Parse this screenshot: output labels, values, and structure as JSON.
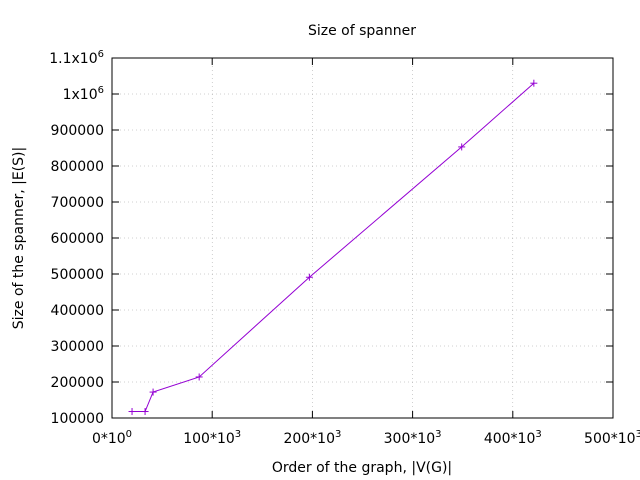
{
  "chart_data": {
    "type": "line",
    "title": "Size of spanner",
    "xlabel": "Order of the graph, |V(G)|",
    "ylabel": "Size of the spanner, |E(S)|",
    "xlim": [
      0,
      500000
    ],
    "ylim": [
      100000,
      1100000
    ],
    "grid": true,
    "x_ticks": [
      {
        "value": 0,
        "base": "0*10",
        "exp": "0"
      },
      {
        "value": 100000,
        "base": "100*10",
        "exp": "3"
      },
      {
        "value": 200000,
        "base": "200*10",
        "exp": "3"
      },
      {
        "value": 300000,
        "base": "300*10",
        "exp": "3"
      },
      {
        "value": 400000,
        "base": "400*10",
        "exp": "3"
      },
      {
        "value": 500000,
        "base": "500*10",
        "exp": "3"
      }
    ],
    "y_ticks": [
      {
        "value": 100000,
        "base": "100000",
        "exp": ""
      },
      {
        "value": 200000,
        "base": "200000",
        "exp": ""
      },
      {
        "value": 300000,
        "base": "300000",
        "exp": ""
      },
      {
        "value": 400000,
        "base": "400000",
        "exp": ""
      },
      {
        "value": 500000,
        "base": "500000",
        "exp": ""
      },
      {
        "value": 600000,
        "base": "600000",
        "exp": ""
      },
      {
        "value": 700000,
        "base": "700000",
        "exp": ""
      },
      {
        "value": 800000,
        "base": "800000",
        "exp": ""
      },
      {
        "value": 900000,
        "base": "900000",
        "exp": ""
      },
      {
        "value": 1000000,
        "base": "1x10",
        "exp": "6"
      },
      {
        "value": 1100000,
        "base": "1.1x10",
        "exp": "6"
      }
    ],
    "series": [
      {
        "color": "#9400d3",
        "marker": "plus",
        "points": [
          {
            "x": 20000,
            "y": 118000
          },
          {
            "x": 33000,
            "y": 118000
          },
          {
            "x": 41000,
            "y": 172000
          },
          {
            "x": 87000,
            "y": 214000
          },
          {
            "x": 197000,
            "y": 491000
          },
          {
            "x": 349000,
            "y": 853000
          },
          {
            "x": 421000,
            "y": 1030000
          }
        ]
      }
    ]
  }
}
